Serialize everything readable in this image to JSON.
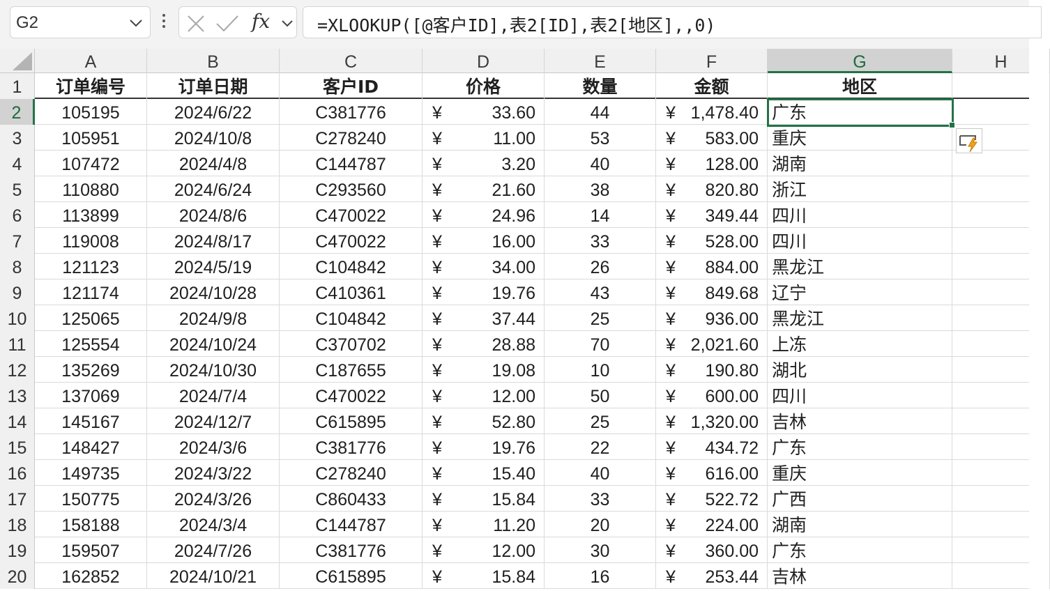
{
  "name_box": {
    "value": "G2"
  },
  "formula": {
    "fx_label": "fx",
    "text": "=XLOOKUP([@客户ID],表2[ID],表2[地区],,0)"
  },
  "columns": [
    "A",
    "B",
    "C",
    "D",
    "E",
    "F",
    "G",
    "H"
  ],
  "active_column": "G",
  "active_row": 2,
  "currency_symbol": "¥",
  "headers": [
    "订单编号",
    "订单日期",
    "客户ID",
    "价格",
    "数量",
    "金额",
    "地区"
  ],
  "rows": [
    {
      "n": 2,
      "id": "105195",
      "date": "2024/6/22",
      "cust": "C381776",
      "price": "33.60",
      "qty": "44",
      "amount": "1,478.40",
      "region": "广东"
    },
    {
      "n": 3,
      "id": "105951",
      "date": "2024/10/8",
      "cust": "C278240",
      "price": "11.00",
      "qty": "53",
      "amount": "583.00",
      "region": "重庆"
    },
    {
      "n": 4,
      "id": "107472",
      "date": "2024/4/8",
      "cust": "C144787",
      "price": "3.20",
      "qty": "40",
      "amount": "128.00",
      "region": "湖南"
    },
    {
      "n": 5,
      "id": "110880",
      "date": "2024/6/24",
      "cust": "C293560",
      "price": "21.60",
      "qty": "38",
      "amount": "820.80",
      "region": "浙江"
    },
    {
      "n": 6,
      "id": "113899",
      "date": "2024/8/6",
      "cust": "C470022",
      "price": "24.96",
      "qty": "14",
      "amount": "349.44",
      "region": "四川"
    },
    {
      "n": 7,
      "id": "119008",
      "date": "2024/8/17",
      "cust": "C470022",
      "price": "16.00",
      "qty": "33",
      "amount": "528.00",
      "region": "四川"
    },
    {
      "n": 8,
      "id": "121123",
      "date": "2024/5/19",
      "cust": "C104842",
      "price": "34.00",
      "qty": "26",
      "amount": "884.00",
      "region": "黑龙江"
    },
    {
      "n": 9,
      "id": "121174",
      "date": "2024/10/28",
      "cust": "C410361",
      "price": "19.76",
      "qty": "43",
      "amount": "849.68",
      "region": "辽宁"
    },
    {
      "n": 10,
      "id": "125065",
      "date": "2024/9/8",
      "cust": "C104842",
      "price": "37.44",
      "qty": "25",
      "amount": "936.00",
      "region": "黑龙江"
    },
    {
      "n": 11,
      "id": "125554",
      "date": "2024/10/24",
      "cust": "C370702",
      "price": "28.88",
      "qty": "70",
      "amount": "2,021.60",
      "region": "上冻"
    },
    {
      "n": 12,
      "id": "135269",
      "date": "2024/10/30",
      "cust": "C187655",
      "price": "19.08",
      "qty": "10",
      "amount": "190.80",
      "region": "湖北"
    },
    {
      "n": 13,
      "id": "137069",
      "date": "2024/7/4",
      "cust": "C470022",
      "price": "12.00",
      "qty": "50",
      "amount": "600.00",
      "region": "四川"
    },
    {
      "n": 14,
      "id": "145167",
      "date": "2024/12/7",
      "cust": "C615895",
      "price": "52.80",
      "qty": "25",
      "amount": "1,320.00",
      "region": "吉林"
    },
    {
      "n": 15,
      "id": "148427",
      "date": "2024/3/6",
      "cust": "C381776",
      "price": "19.76",
      "qty": "22",
      "amount": "434.72",
      "region": "广东"
    },
    {
      "n": 16,
      "id": "149735",
      "date": "2024/3/22",
      "cust": "C278240",
      "price": "15.40",
      "qty": "40",
      "amount": "616.00",
      "region": "重庆"
    },
    {
      "n": 17,
      "id": "150775",
      "date": "2024/3/26",
      "cust": "C860433",
      "price": "15.84",
      "qty": "33",
      "amount": "522.72",
      "region": "广西"
    },
    {
      "n": 18,
      "id": "158188",
      "date": "2024/3/4",
      "cust": "C144787",
      "price": "11.20",
      "qty": "20",
      "amount": "224.00",
      "region": "湖南"
    },
    {
      "n": 19,
      "id": "159507",
      "date": "2024/7/26",
      "cust": "C381776",
      "price": "12.00",
      "qty": "30",
      "amount": "360.00",
      "region": "广东"
    },
    {
      "n": 20,
      "id": "162852",
      "date": "2024/10/21",
      "cust": "C615895",
      "price": "15.84",
      "qty": "16",
      "amount": "253.44",
      "region": "吉林"
    }
  ]
}
